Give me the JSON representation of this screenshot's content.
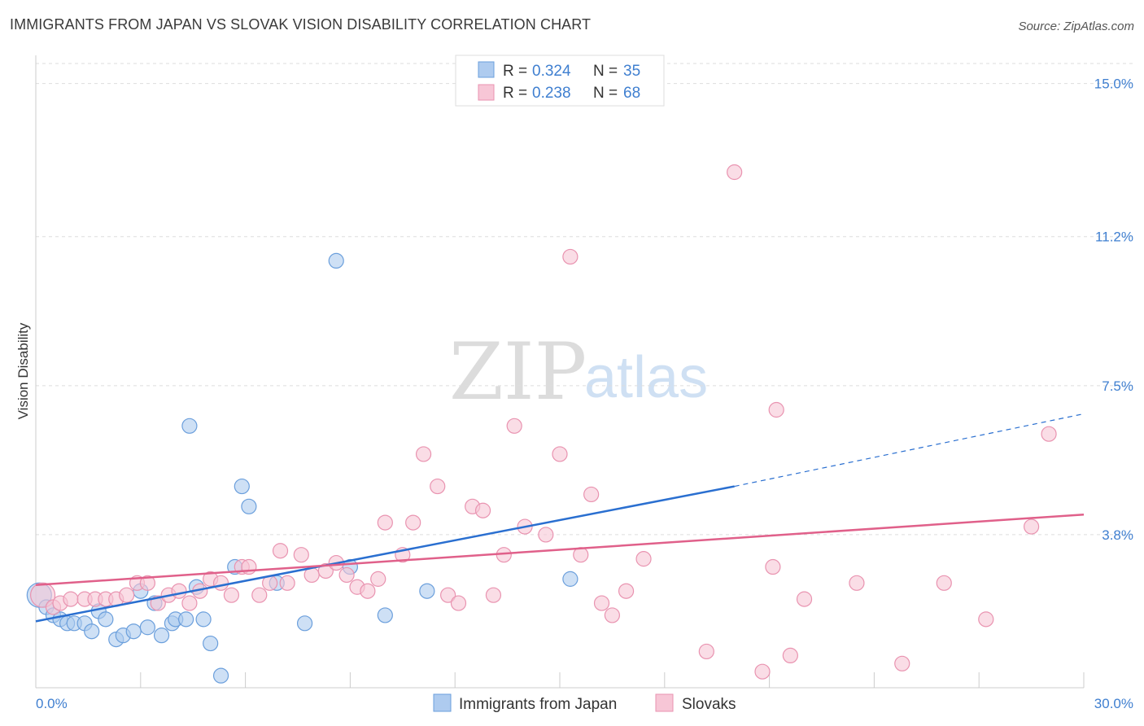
{
  "header": {
    "title": "IMMIGRANTS FROM JAPAN VS SLOVAK VISION DISABILITY CORRELATION CHART",
    "source": "Source: ZipAtlas.com"
  },
  "legend": {
    "rows": [
      {
        "r_label": "R = ",
        "r_value": "0.324",
        "n_label": "N = ",
        "n_value": "35"
      },
      {
        "r_label": "R = ",
        "r_value": "0.238",
        "n_label": "N = ",
        "n_value": "68"
      }
    ]
  },
  "bottom_legend": [
    "Immigrants from Japan",
    "Slovaks"
  ],
  "watermark": {
    "zip": "ZIP",
    "atlas": "atlas"
  },
  "colors": {
    "japan_fill": "#aecbef",
    "japan_stroke": "#6b9fdc",
    "japan_line": "#2a6fd0",
    "slovak_fill": "#f7c6d6",
    "slovak_stroke": "#e993b0",
    "slovak_line": "#e0608a",
    "tick_text": "#3f7fd0"
  },
  "chart_data": {
    "type": "scatter",
    "title": "IMMIGRANTS FROM JAPAN VS SLOVAK VISION DISABILITY CORRELATION CHART",
    "xlabel": "",
    "ylabel": "Vision Disability",
    "xlim": [
      0,
      30
    ],
    "ylim": [
      0,
      15.7
    ],
    "x_tick_labels": [
      "0.0%",
      "30.0%"
    ],
    "y_ticks": [
      3.8,
      7.5,
      11.2,
      15.0
    ],
    "y_tick_labels": [
      "3.8%",
      "7.5%",
      "11.2%",
      "15.0%"
    ],
    "grid": "horizontal-dashed",
    "legend_position": "top-center",
    "series": [
      {
        "name": "Immigrants from Japan",
        "points": [
          [
            0.1,
            2.3
          ],
          [
            0.3,
            2.0
          ],
          [
            0.5,
            1.8
          ],
          [
            0.7,
            1.7
          ],
          [
            0.9,
            1.6
          ],
          [
            1.1,
            1.6
          ],
          [
            1.4,
            1.6
          ],
          [
            1.6,
            1.4
          ],
          [
            1.8,
            1.9
          ],
          [
            2.0,
            1.7
          ],
          [
            2.3,
            1.2
          ],
          [
            2.5,
            1.3
          ],
          [
            2.8,
            1.4
          ],
          [
            3.0,
            2.4
          ],
          [
            3.2,
            1.5
          ],
          [
            3.4,
            2.1
          ],
          [
            3.6,
            1.3
          ],
          [
            3.9,
            1.6
          ],
          [
            4.0,
            1.7
          ],
          [
            4.3,
            1.7
          ],
          [
            4.4,
            6.5
          ],
          [
            4.6,
            2.5
          ],
          [
            4.8,
            1.7
          ],
          [
            5.0,
            1.1
          ],
          [
            5.3,
            0.3
          ],
          [
            5.7,
            3.0
          ],
          [
            5.9,
            5.0
          ],
          [
            6.1,
            4.5
          ],
          [
            6.9,
            2.6
          ],
          [
            7.7,
            1.6
          ],
          [
            8.6,
            10.6
          ],
          [
            9.0,
            3.0
          ],
          [
            10.0,
            1.8
          ],
          [
            11.2,
            2.4
          ],
          [
            15.3,
            2.7
          ]
        ],
        "trend": {
          "x": [
            0,
            20
          ],
          "y": [
            1.65,
            5.0
          ],
          "extends_dashed_to": [
            30,
            6.8
          ]
        }
      },
      {
        "name": "Slovaks",
        "points": [
          [
            0.2,
            2.3
          ],
          [
            0.5,
            2.0
          ],
          [
            0.7,
            2.1
          ],
          [
            1.0,
            2.2
          ],
          [
            1.4,
            2.2
          ],
          [
            1.7,
            2.2
          ],
          [
            2.0,
            2.2
          ],
          [
            2.3,
            2.2
          ],
          [
            2.6,
            2.3
          ],
          [
            2.9,
            2.6
          ],
          [
            3.2,
            2.6
          ],
          [
            3.5,
            2.1
          ],
          [
            3.8,
            2.3
          ],
          [
            4.1,
            2.4
          ],
          [
            4.4,
            2.1
          ],
          [
            4.7,
            2.4
          ],
          [
            5.0,
            2.7
          ],
          [
            5.3,
            2.6
          ],
          [
            5.6,
            2.3
          ],
          [
            5.9,
            3.0
          ],
          [
            6.1,
            3.0
          ],
          [
            6.4,
            2.3
          ],
          [
            6.7,
            2.6
          ],
          [
            7.0,
            3.4
          ],
          [
            7.2,
            2.6
          ],
          [
            7.6,
            3.3
          ],
          [
            7.9,
            2.8
          ],
          [
            8.3,
            2.9
          ],
          [
            8.6,
            3.1
          ],
          [
            8.9,
            2.8
          ],
          [
            9.2,
            2.5
          ],
          [
            9.5,
            2.4
          ],
          [
            9.8,
            2.7
          ],
          [
            10.0,
            4.1
          ],
          [
            10.5,
            3.3
          ],
          [
            10.8,
            4.1
          ],
          [
            11.1,
            5.8
          ],
          [
            11.5,
            5.0
          ],
          [
            11.8,
            2.3
          ],
          [
            12.1,
            2.1
          ],
          [
            12.5,
            4.5
          ],
          [
            12.8,
            4.4
          ],
          [
            13.1,
            2.3
          ],
          [
            13.4,
            3.3
          ],
          [
            13.7,
            6.5
          ],
          [
            14.0,
            4.0
          ],
          [
            14.6,
            3.8
          ],
          [
            15.0,
            5.8
          ],
          [
            15.3,
            10.7
          ],
          [
            15.6,
            3.3
          ],
          [
            15.9,
            4.8
          ],
          [
            16.2,
            2.1
          ],
          [
            16.5,
            1.8
          ],
          [
            16.9,
            2.4
          ],
          [
            17.4,
            3.2
          ],
          [
            19.2,
            0.9
          ],
          [
            20.0,
            12.8
          ],
          [
            20.8,
            0.4
          ],
          [
            21.1,
            3.0
          ],
          [
            21.2,
            6.9
          ],
          [
            21.6,
            0.8
          ],
          [
            22.0,
            2.2
          ],
          [
            23.5,
            2.6
          ],
          [
            24.8,
            0.6
          ],
          [
            26.0,
            2.6
          ],
          [
            27.2,
            1.7
          ],
          [
            28.5,
            4.0
          ],
          [
            29.0,
            6.3
          ]
        ],
        "trend": {
          "x": [
            0,
            30
          ],
          "y": [
            2.55,
            4.3
          ]
        }
      }
    ]
  }
}
